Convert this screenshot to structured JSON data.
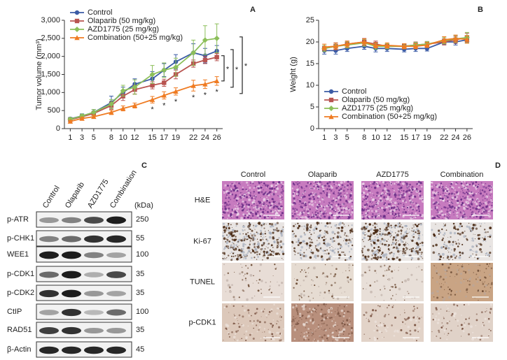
{
  "chart_data": [
    {
      "type": "line",
      "panel": "A",
      "y_label": "Tumor volume (mm³)",
      "x": [
        1,
        3,
        5,
        8,
        10,
        12,
        15,
        17,
        19,
        22,
        24,
        26
      ],
      "xlim": [
        0,
        27
      ],
      "xticks": [
        1,
        3,
        5,
        8,
        10,
        12,
        15,
        17,
        19,
        22,
        24,
        26
      ],
      "ylim": [
        0,
        3000
      ],
      "yticks": [
        0,
        500,
        {
          "value": 1000,
          "label": "1,000"
        },
        {
          "value": 1500,
          "label": "1,500"
        },
        {
          "value": 2000,
          "label": "2,000"
        },
        {
          "value": 2500,
          "label": "2,500"
        },
        {
          "value": 3000,
          "label": "3,000"
        }
      ],
      "legend": "upper left",
      "series": [
        {
          "name": "Control",
          "color": "#3b5ba5",
          "marker": "circle",
          "values": [
            270,
            350,
            450,
            720,
            1000,
            1230,
            1380,
            1620,
            1850,
            2100,
            2020,
            2150
          ],
          "errors": [
            40,
            60,
            80,
            180,
            150,
            150,
            200,
            180,
            200,
            250,
            200,
            150
          ]
        },
        {
          "name": "Olaparib (50 mg/kg)",
          "color": "#b85450",
          "marker": "square",
          "values": [
            250,
            330,
            420,
            640,
            900,
            1080,
            1200,
            1270,
            1500,
            1800,
            1900,
            1980
          ],
          "errors": [
            30,
            50,
            60,
            100,
            120,
            120,
            100,
            100,
            120,
            100,
            100,
            100
          ]
        },
        {
          "name": "AZD1775 (25 mg/kg)",
          "color": "#8cbf5a",
          "marker": "diamond",
          "values": [
            260,
            350,
            450,
            680,
            1050,
            1150,
            1500,
            1620,
            1700,
            2100,
            2450,
            2500
          ],
          "errors": [
            40,
            50,
            80,
            120,
            150,
            200,
            250,
            200,
            250,
            350,
            400,
            400
          ]
        },
        {
          "name": "Combination (50+25 mg/kg)",
          "color": "#ef7b22",
          "marker": "triangle",
          "values": [
            200,
            280,
            330,
            450,
            560,
            640,
            800,
            920,
            1030,
            1190,
            1230,
            1320
          ],
          "errors": [
            30,
            40,
            50,
            60,
            70,
            70,
            90,
            100,
            100,
            150,
            120,
            120
          ]
        }
      ],
      "annotations": [
        {
          "x": 15,
          "text": "*"
        },
        {
          "x": 17,
          "text": "*"
        },
        {
          "x": 19,
          "text": "*"
        },
        {
          "x": 22,
          "text": "*"
        },
        {
          "x": 24,
          "text": "*"
        },
        {
          "x": 26,
          "text": "*"
        }
      ],
      "brackets": [
        "*",
        "*",
        "*"
      ]
    },
    {
      "type": "line",
      "panel": "B",
      "y_label": "Weight (g)",
      "x": [
        1,
        3,
        5,
        8,
        10,
        12,
        15,
        17,
        19,
        22,
        24,
        26
      ],
      "xlim": [
        0,
        27
      ],
      "xticks": [
        1,
        3,
        5,
        8,
        10,
        12,
        15,
        17,
        19,
        22,
        24,
        26
      ],
      "ylim": [
        0,
        25
      ],
      "yticks": [
        0,
        5,
        10,
        15,
        20,
        25
      ],
      "legend": "lower left",
      "series": [
        {
          "name": "Control",
          "color": "#3b5ba5",
          "marker": "circle",
          "values": [
            18,
            18,
            18.5,
            19,
            18.5,
            18.5,
            18.3,
            18.5,
            18.5,
            20,
            20,
            20.5
          ],
          "errors": [
            0.8,
            0.8,
            0.7,
            0.7,
            0.8,
            0.7,
            0.6,
            0.7,
            0.6,
            0.6,
            0.7,
            0.7
          ]
        },
        {
          "name": "Olaparib (50 mg/kg)",
          "color": "#b85450",
          "marker": "square",
          "values": [
            18.5,
            19,
            19.5,
            20,
            19.5,
            19,
            19,
            19.3,
            19.5,
            20,
            20.5,
            21
          ],
          "errors": [
            0.7,
            0.8,
            0.7,
            0.8,
            0.7,
            0.6,
            0.6,
            0.7,
            0.6,
            0.7,
            0.8,
            1
          ]
        },
        {
          "name": "AZD1775 (25 mg/kg)",
          "color": "#8cbf5a",
          "marker": "diamond",
          "values": [
            18.5,
            19,
            19.3,
            19.8,
            19,
            19,
            19,
            19.3,
            19.5,
            20.3,
            20.7,
            21
          ],
          "errors": [
            0.7,
            0.7,
            0.7,
            0.8,
            0.7,
            0.6,
            0.6,
            0.6,
            0.6,
            0.7,
            0.8,
            1.2
          ]
        },
        {
          "name": "Combination (50+25 mg/kg)",
          "color": "#ef7b22",
          "marker": "triangle",
          "values": [
            18.8,
            19,
            19.5,
            20,
            19.2,
            19.2,
            19,
            19,
            19.3,
            20.5,
            20.8,
            20.6
          ],
          "errors": [
            0.7,
            0.7,
            0.7,
            0.7,
            0.6,
            0.6,
            0.6,
            0.6,
            0.6,
            0.7,
            0.8,
            0.9
          ]
        }
      ]
    }
  ],
  "blot": {
    "panel": "C",
    "columns": [
      "Control",
      "Olaparib",
      "AZD1775",
      "Combination"
    ],
    "unit_header": "(kDa)",
    "rows": [
      {
        "label": "p-ATR",
        "kda": 250
      },
      {
        "label": "p-CHK1",
        "kda": 55
      },
      {
        "label": "WEE1",
        "kda": 100
      },
      {
        "label": "p-CDK1",
        "kda": 35
      },
      {
        "label": "p-CDK2",
        "kda": 35
      },
      {
        "label": "CtIP",
        "kda": 100
      },
      {
        "label": "RAD51",
        "kda": 35
      },
      {
        "label": "β-Actin",
        "kda": 45
      }
    ]
  },
  "histology": {
    "panel": "D",
    "columns": [
      "Control",
      "Olaparib",
      "AZD1775",
      "Combination"
    ],
    "rows": [
      "H&E",
      "Ki-67",
      "TUNEL",
      "p-CDK1"
    ]
  }
}
